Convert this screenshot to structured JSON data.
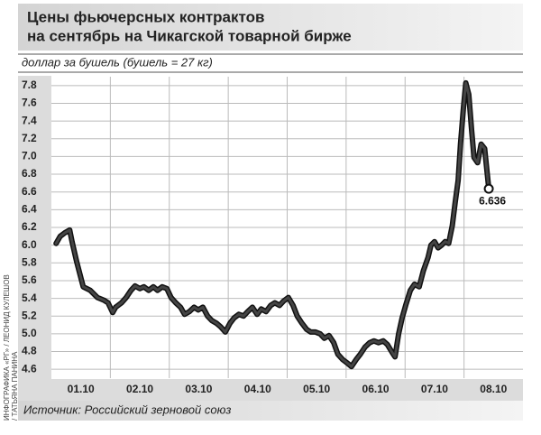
{
  "chart_data": {
    "type": "line",
    "title": [
      "Цены фьючерсных контрактов",
      "на сентябрь на Чикагской товарной бирже"
    ],
    "subtitle": "доллар за бушель (бушель = 27 кг)",
    "source": "Источник: Российский зерновой союз",
    "credit": [
      "ИНФОГРАФИКА «РГ» / ЛЕОНИД КУЛЕШОВ",
      "/ ТАТЬЯНА ПАНИНА"
    ],
    "color": "#444444",
    "grid": true,
    "xlim": [
      0,
      8
    ],
    "ylim": [
      4.5,
      7.9
    ],
    "xticks": [
      {
        "value": 0.5,
        "label": "01.10"
      },
      {
        "value": 1.5,
        "label": "02.10"
      },
      {
        "value": 2.5,
        "label": "03.10"
      },
      {
        "value": 3.5,
        "label": "04.10"
      },
      {
        "value": 4.5,
        "label": "05.10"
      },
      {
        "value": 5.5,
        "label": "06.10"
      },
      {
        "value": 6.5,
        "label": "07.10"
      },
      {
        "value": 7.5,
        "label": "08.10"
      }
    ],
    "yticks": [
      4.6,
      4.8,
      {
        "value": 5,
        "label": "5.0"
      },
      5.2,
      5.4,
      5.6,
      5.8,
      {
        "value": 6,
        "label": "6.0"
      },
      6.2,
      6.4,
      6.6,
      6.8,
      {
        "value": 7,
        "label": "7.0"
      },
      7.2,
      7.4,
      7.6,
      7.8
    ],
    "x": [
      0.08,
      0.15,
      0.23,
      0.31,
      0.35,
      0.43,
      0.54,
      0.66,
      0.78,
      0.89,
      0.96,
      1.04,
      1.09,
      1.19,
      1.27,
      1.35,
      1.42,
      1.5,
      1.57,
      1.65,
      1.73,
      1.8,
      1.88,
      1.96,
      2.03,
      2.11,
      2.19,
      2.26,
      2.34,
      2.42,
      2.49,
      2.57,
      2.65,
      2.72,
      2.8,
      2.87,
      2.95,
      3.03,
      3.1,
      3.18,
      3.26,
      3.33,
      3.41,
      3.49,
      3.56,
      3.64,
      3.72,
      3.79,
      3.87,
      3.94,
      4.02,
      4.1,
      4.17,
      4.25,
      4.33,
      4.4,
      4.48,
      4.56,
      4.63,
      4.71,
      4.79,
      4.86,
      4.94,
      5.02,
      5.09,
      5.17,
      5.24,
      5.32,
      5.4,
      5.47,
      5.55,
      5.63,
      5.7,
      5.78,
      5.83,
      5.89,
      5.95,
      6.01,
      6.09,
      6.16,
      6.24,
      6.31,
      6.39,
      6.44,
      6.5,
      6.56,
      6.62,
      6.68,
      6.74,
      6.8,
      6.85,
      6.9,
      6.94,
      6.99,
      7.03,
      7.08,
      7.13,
      7.17,
      7.23,
      7.29,
      7.35,
      7.42
    ],
    "values": [
      6.02,
      6.1,
      6.14,
      6.17,
      6.04,
      5.81,
      5.53,
      5.49,
      5.41,
      5.38,
      5.35,
      5.24,
      5.3,
      5.35,
      5.41,
      5.49,
      5.54,
      5.51,
      5.53,
      5.49,
      5.53,
      5.49,
      5.53,
      5.51,
      5.41,
      5.35,
      5.3,
      5.22,
      5.25,
      5.3,
      5.27,
      5.3,
      5.2,
      5.15,
      5.12,
      5.08,
      5.02,
      5.12,
      5.18,
      5.22,
      5.2,
      5.25,
      5.3,
      5.22,
      5.28,
      5.25,
      5.32,
      5.35,
      5.32,
      5.37,
      5.41,
      5.32,
      5.2,
      5.12,
      5.05,
      5.02,
      5.02,
      5.0,
      4.95,
      4.98,
      4.9,
      4.77,
      4.71,
      4.67,
      4.63,
      4.71,
      4.77,
      4.85,
      4.9,
      4.92,
      4.9,
      4.92,
      4.88,
      4.79,
      4.74,
      5.0,
      5.18,
      5.32,
      5.49,
      5.56,
      5.53,
      5.71,
      5.86,
      6.0,
      6.04,
      5.97,
      6.0,
      6.04,
      6.02,
      6.22,
      6.48,
      6.73,
      7.14,
      7.55,
      7.83,
      7.7,
      7.29,
      6.99,
      6.93,
      7.14,
      7.09,
      6.636
    ]
  }
}
